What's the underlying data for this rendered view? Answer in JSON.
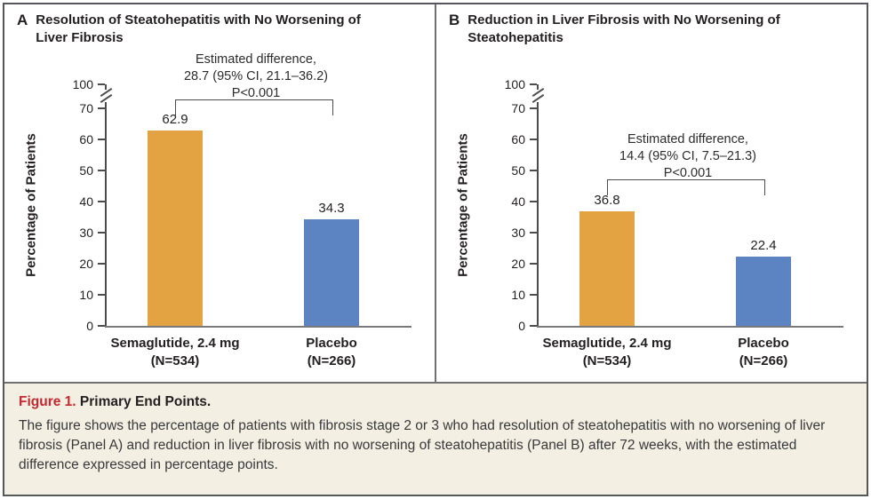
{
  "colors": {
    "semaglutide_bar": "#e4a343",
    "placebo_bar": "#5c84c3",
    "figure_label_red": "#c5282f",
    "caption_bg": "#f4efe3",
    "frame_border": "#55575b",
    "axis_line": "#4b4c4e"
  },
  "chart_data": [
    {
      "type": "bar",
      "panel_letter": "A",
      "title": "Resolution of Steatohepatitis with No Worsening of Liver Fibrosis",
      "ylabel": "Percentage of Patients",
      "ylim": [
        0,
        100
      ],
      "yticks": [
        0,
        10,
        20,
        30,
        40,
        50,
        60,
        70,
        100
      ],
      "axis_break_between": [
        70,
        100
      ],
      "grid": false,
      "categories": [
        "Semaglutide, 2.4 mg",
        "Placebo"
      ],
      "category_sublabels": [
        "(N=534)",
        "(N=266)"
      ],
      "values": [
        62.9,
        34.3
      ],
      "bar_colors": [
        "#e4a343",
        "#5c84c3"
      ],
      "annotation": {
        "lines": [
          "Estimated difference,",
          "28.7 (95% CI, 21.1–36.2)",
          "P<0.001"
        ]
      }
    },
    {
      "type": "bar",
      "panel_letter": "B",
      "title": "Reduction in Liver Fibrosis with No Worsening of Steatohepatitis",
      "ylabel": "Percentage of Patients",
      "ylim": [
        0,
        100
      ],
      "yticks": [
        0,
        10,
        20,
        30,
        40,
        50,
        60,
        70,
        100
      ],
      "axis_break_between": [
        70,
        100
      ],
      "grid": false,
      "categories": [
        "Semaglutide, 2.4 mg",
        "Placebo"
      ],
      "category_sublabels": [
        "(N=534)",
        "(N=266)"
      ],
      "values": [
        36.8,
        22.4
      ],
      "bar_colors": [
        "#e4a343",
        "#5c84c3"
      ],
      "annotation": {
        "lines": [
          "Estimated difference,",
          "14.4 (95% CI, 7.5–21.3)",
          "P<0.001"
        ]
      }
    }
  ],
  "caption": {
    "label": "Figure 1.",
    "title": "Primary End Points.",
    "body": "The figure shows the percentage of patients with fibrosis stage 2 or 3 who had resolution of steatohepatitis with no worsening of liver fibrosis (Panel A) and reduction in liver fibrosis with no worsening of steatohepatitis (Panel B) after 72 weeks, with the estimated difference expressed in percentage points."
  }
}
